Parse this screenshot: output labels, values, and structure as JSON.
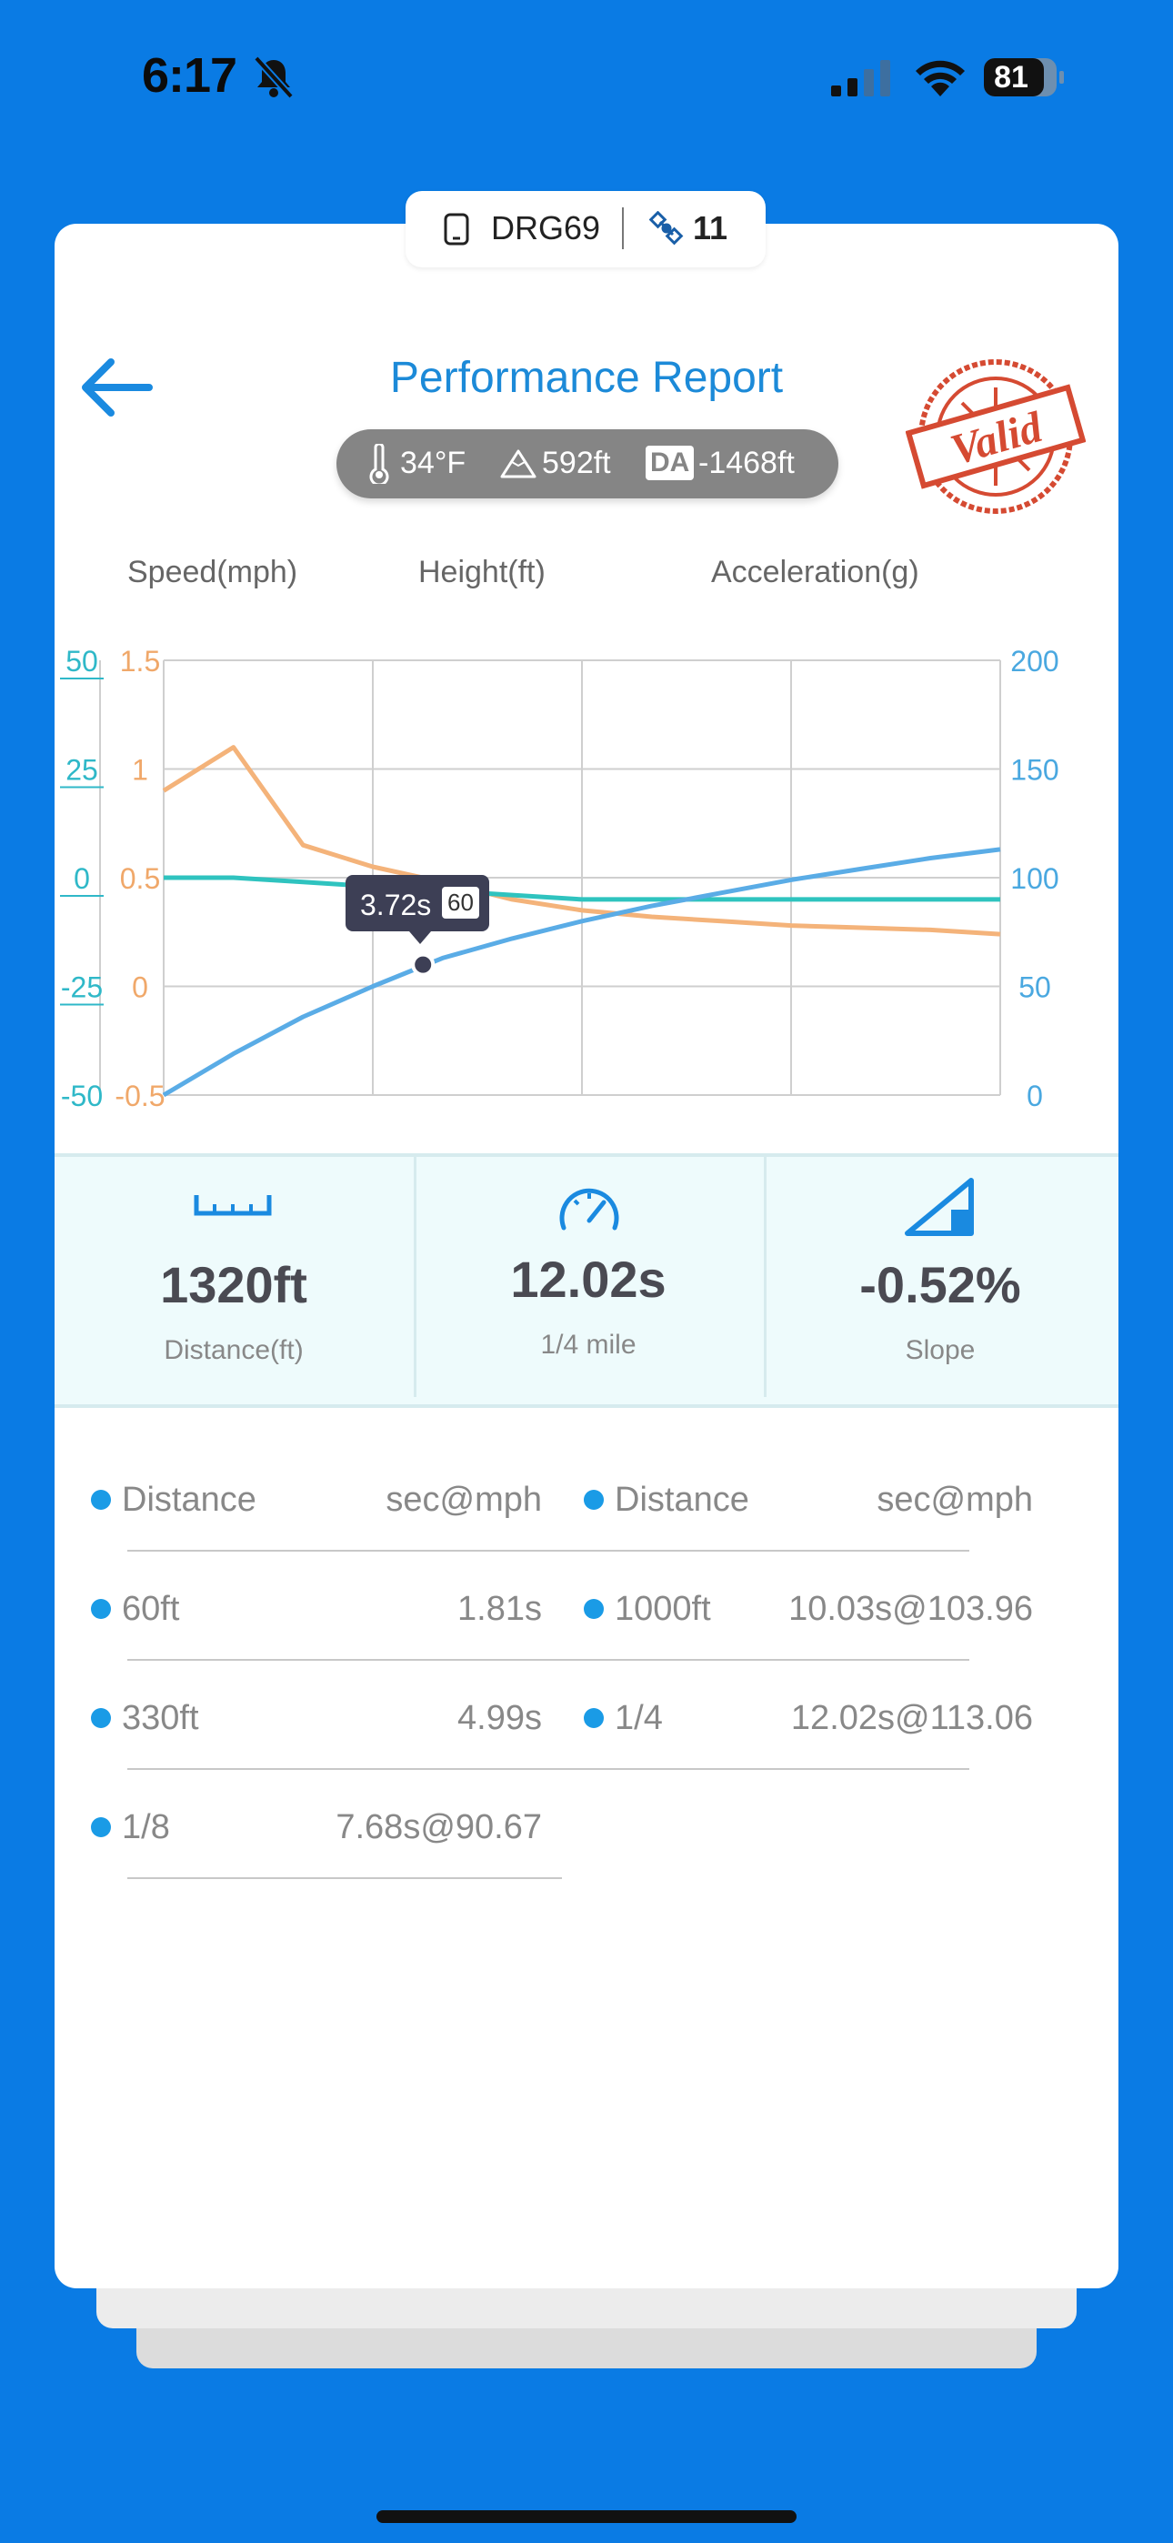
{
  "status_bar": {
    "time": "6:17",
    "battery": "81"
  },
  "device": {
    "name": "DRG69",
    "satellites": "11"
  },
  "header": {
    "title": "Performance Report",
    "stamp_text": "Valid"
  },
  "weather": {
    "temperature": "34°F",
    "altitude": "592ft",
    "da_label": "DA",
    "density_altitude": "-1468ft"
  },
  "legend": {
    "speed": "Speed(mph)",
    "height": "Height(ft)",
    "acceleration": "Acceleration(g)"
  },
  "colors": {
    "speed": "#5aace6",
    "height": "#2fc3bf",
    "acceleration": "#f4b37a",
    "accent": "#1a9be6"
  },
  "chart_data": {
    "type": "line",
    "x": [
      0,
      1,
      2,
      3,
      4,
      5,
      6,
      7,
      8,
      9,
      10,
      11,
      12
    ],
    "series": [
      {
        "name": "Speed(mph)",
        "axis": "right",
        "values": [
          0,
          19,
          36,
          50,
          63,
          72,
          80,
          87,
          93,
          99,
          104,
          109,
          113
        ]
      },
      {
        "name": "Height(ft)",
        "axis": "left-outer",
        "values": [
          0,
          0,
          -1,
          -2,
          -3,
          -4,
          -5,
          -5,
          -5,
          -5,
          -5,
          -5,
          -5
        ]
      },
      {
        "name": "Acceleration(g)",
        "axis": "left-inner",
        "values": [
          0.9,
          1.1,
          0.65,
          0.55,
          0.48,
          0.4,
          0.35,
          0.32,
          0.3,
          0.28,
          0.27,
          0.26,
          0.24
        ]
      }
    ],
    "y_left_outer": {
      "ticks": [
        "50",
        "25",
        "0",
        "-25",
        "-50"
      ],
      "range": [
        -50,
        50
      ]
    },
    "y_left_inner": {
      "ticks": [
        "1.5",
        "1",
        "0.5",
        "0",
        "-0.5"
      ],
      "range": [
        -0.5,
        1.5
      ]
    },
    "y_right": {
      "ticks": [
        "200",
        "150",
        "100",
        "50",
        "0"
      ],
      "range": [
        0,
        200
      ]
    },
    "grid": true,
    "tooltip": {
      "time": "3.72s",
      "speed": "60"
    }
  },
  "stats": [
    {
      "value": "1320ft",
      "label": "Distance(ft)",
      "icon": "ruler-icon"
    },
    {
      "value": "12.02s",
      "label": "1/4 mile",
      "icon": "speedometer-icon"
    },
    {
      "value": "-0.52%",
      "label": "Slope",
      "icon": "slope-icon"
    }
  ],
  "table": {
    "header": {
      "distance": "Distance",
      "value": "sec@mph"
    },
    "left_rows": [
      {
        "distance": "60ft",
        "value": "1.81s"
      },
      {
        "distance": "330ft",
        "value": "4.99s"
      },
      {
        "distance": "1/8",
        "value": "7.68s@90.67"
      }
    ],
    "right_rows": [
      {
        "distance": "1000ft",
        "value": "10.03s@103.96"
      },
      {
        "distance": "1/4",
        "value": "12.02s@113.06"
      }
    ]
  }
}
